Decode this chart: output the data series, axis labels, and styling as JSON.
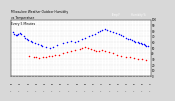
{
  "background_color": "#d8d8d8",
  "plot_bg_color": "#ffffff",
  "title_text": "Milwaukee Weather Outdoor Humidity vs Temperature Every 5 Minutes",
  "legend_red_label": "Temp F",
  "legend_blue_label": "Humidity %",
  "ylim": [
    0,
    100
  ],
  "xlim": [
    0,
    1
  ],
  "blue_x": [
    0.01,
    0.02,
    0.03,
    0.04,
    0.05,
    0.06,
    0.07,
    0.09,
    0.1,
    0.11,
    0.12,
    0.14,
    0.15,
    0.17,
    0.19,
    0.21,
    0.22,
    0.25,
    0.28,
    0.3,
    0.33,
    0.37,
    0.4,
    0.43,
    0.46,
    0.48,
    0.51,
    0.53,
    0.56,
    0.58,
    0.6,
    0.62,
    0.64,
    0.65,
    0.67,
    0.69,
    0.71,
    0.73,
    0.75,
    0.77,
    0.79,
    0.8,
    0.82,
    0.84,
    0.85,
    0.87,
    0.88,
    0.89,
    0.91,
    0.92,
    0.93,
    0.94,
    0.95,
    0.96,
    0.97,
    0.98
  ],
  "blue_y": [
    78,
    75,
    73,
    72,
    74,
    76,
    74,
    70,
    68,
    65,
    63,
    62,
    60,
    58,
    57,
    55,
    54,
    52,
    50,
    52,
    55,
    58,
    60,
    62,
    60,
    62,
    65,
    67,
    70,
    72,
    75,
    78,
    80,
    82,
    83,
    82,
    80,
    78,
    76,
    74,
    72,
    70,
    68,
    66,
    65,
    63,
    62,
    61,
    60,
    59,
    58,
    57,
    56,
    55,
    54,
    53
  ],
  "red_x": [
    0.13,
    0.16,
    0.18,
    0.2,
    0.23,
    0.25,
    0.27,
    0.29,
    0.31,
    0.34,
    0.37,
    0.4,
    0.43,
    0.46,
    0.49,
    0.51,
    0.53,
    0.55,
    0.57,
    0.59,
    0.61,
    0.63,
    0.65,
    0.67,
    0.7,
    0.73,
    0.76,
    0.79,
    0.82,
    0.85,
    0.88,
    0.91,
    0.94,
    0.97
  ],
  "red_y": [
    35,
    34,
    33,
    32,
    33,
    34,
    35,
    36,
    37,
    38,
    40,
    42,
    44,
    46,
    48,
    50,
    52,
    50,
    48,
    46,
    44,
    45,
    46,
    44,
    42,
    40,
    38,
    36,
    34,
    33,
    32,
    31,
    30,
    29
  ],
  "xtick_labels": [
    "12",
    "",
    "",
    "13",
    "",
    "",
    "14",
    "",
    "",
    "15",
    "",
    "",
    "16",
    "",
    "",
    "17",
    "",
    "",
    "18",
    "",
    "",
    "19",
    "",
    "",
    "20",
    "",
    "",
    "21",
    "",
    "",
    "22",
    "",
    "",
    "23",
    "",
    "",
    "00",
    "",
    "",
    "01",
    "",
    "",
    "02",
    "",
    "",
    "03",
    "",
    "",
    "04",
    "",
    "",
    "05",
    "",
    ""
  ],
  "ytick_vals": [
    0,
    10,
    20,
    30,
    40,
    50,
    60,
    70,
    80,
    90,
    100
  ],
  "marker_size": 1.2
}
